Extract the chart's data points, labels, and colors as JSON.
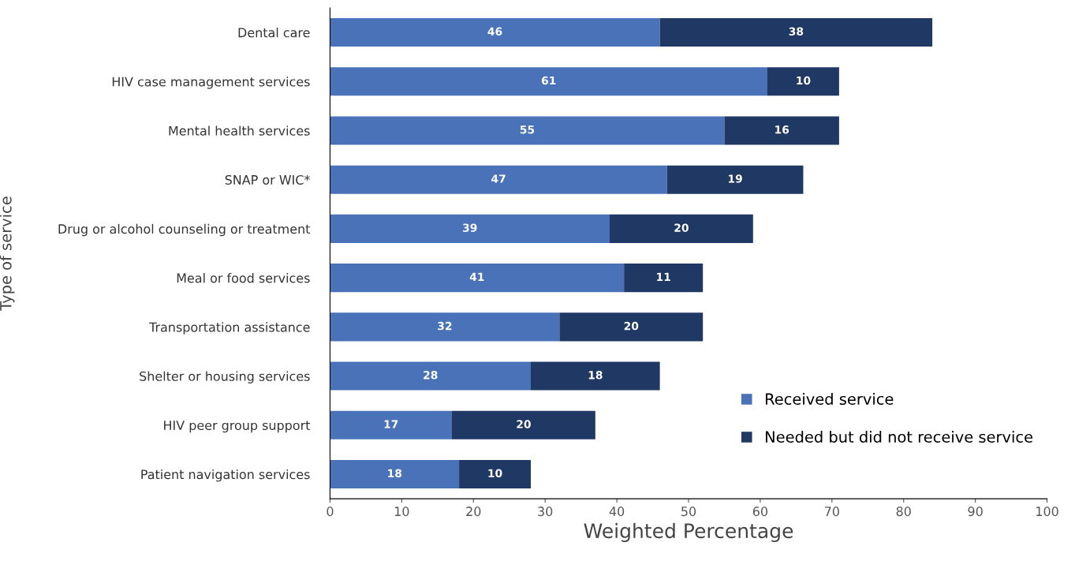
{
  "chart_data": {
    "type": "bar",
    "orientation": "horizontal",
    "stacked": true,
    "data_labels": true,
    "categories": [
      "Dental care",
      "HIV case management services",
      "Mental health services",
      "SNAP or WIC*",
      "Drug or alcohol counseling or treatment",
      "Meal or food services",
      "Transportation assistance",
      "Shelter or housing services",
      "HIV peer group support",
      "Patient navigation services"
    ],
    "series": [
      {
        "name": "Received service",
        "color": "#4a72b8",
        "values": [
          46,
          61,
          55,
          47,
          39,
          41,
          32,
          28,
          17,
          18
        ]
      },
      {
        "name": "Needed but did not receive service",
        "color": "#1f3864",
        "values": [
          38,
          10,
          16,
          19,
          20,
          11,
          20,
          18,
          20,
          10
        ]
      }
    ],
    "xlabel": "Weighted Percentage",
    "ylabel": "Type of service",
    "xlim": [
      0,
      100
    ],
    "xticks": [
      0,
      10,
      20,
      30,
      40,
      50,
      60,
      70,
      80,
      90,
      100
    ],
    "grid": false,
    "legend": "bottom right"
  }
}
